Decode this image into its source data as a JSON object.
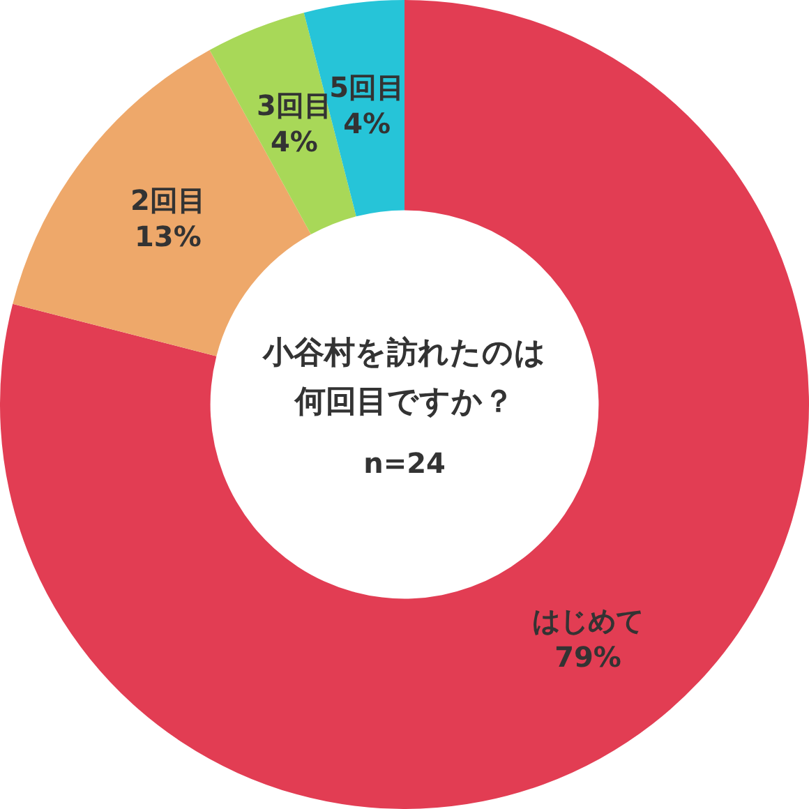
{
  "chart_data": {
    "type": "donut",
    "title": "小谷村を訪れたのは何回目ですか？",
    "subtitle": "n=24",
    "categories": [
      "はじめて",
      "2回目",
      "3回目",
      "5回目"
    ],
    "values": [
      79,
      13,
      4,
      4
    ],
    "value_labels": [
      "79%",
      "13%",
      "4%",
      "4%"
    ],
    "colors": [
      "#e23d53",
      "#eea86a",
      "#a8d858",
      "#26c4d8"
    ],
    "legend": false
  }
}
